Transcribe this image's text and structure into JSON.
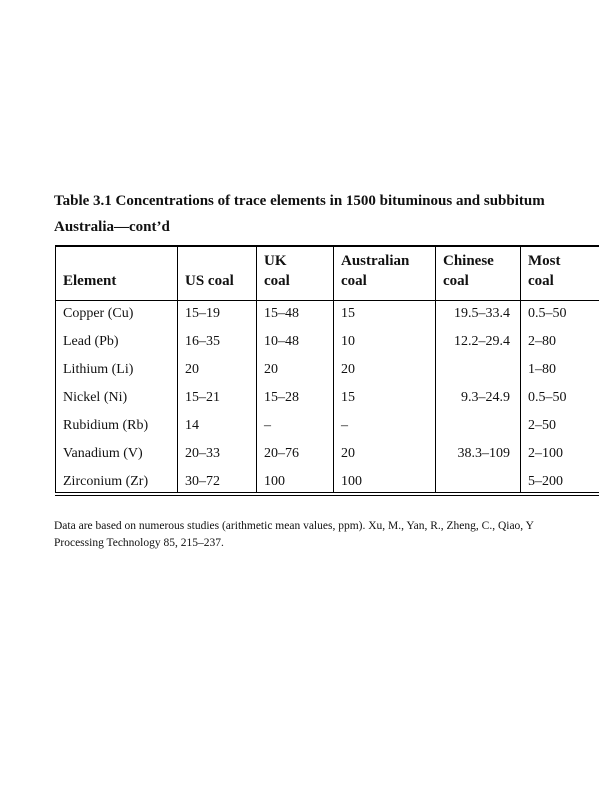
{
  "caption": {
    "title": "Table 3.1  Concentrations of trace elements in 1500 bituminous and subbitum",
    "subtitle": "Australia—cont’d"
  },
  "table": {
    "headers": [
      [
        "Element"
      ],
      [
        "US coal"
      ],
      [
        "UK",
        "coal"
      ],
      [
        "Australian",
        "coal"
      ],
      [
        "Chinese",
        "coal"
      ],
      [
        "Most",
        "coal"
      ]
    ],
    "rows": [
      [
        "Copper (Cu)",
        "15–19",
        "15–48",
        "15",
        "19.5–33.4",
        "0.5–50"
      ],
      [
        "Lead (Pb)",
        "16–35",
        "10–48",
        "10",
        "12.2–29.4",
        "2–80"
      ],
      [
        "Lithium (Li)",
        "20",
        "20",
        "20",
        null,
        "1–80"
      ],
      [
        "Nickel (Ni)",
        "15–21",
        "15–28",
        "15",
        "9.3–24.9",
        "0.5–50"
      ],
      [
        "Rubidium (Rb)",
        "14",
        "–",
        "–",
        null,
        "2–50"
      ],
      [
        "Vanadium (V)",
        "20–33",
        "20–76",
        "20",
        "38.3–109",
        "2–100"
      ],
      [
        "Zirconium (Zr)",
        "30–72",
        "100",
        "100",
        null,
        "5–200"
      ]
    ]
  },
  "footnote": [
    "Data are based on numerous studies (arithmetic mean values, ppm). Xu, M., Yan, R., Zheng, C., Qiao, Y",
    "Processing Technology 85, 215–237."
  ]
}
